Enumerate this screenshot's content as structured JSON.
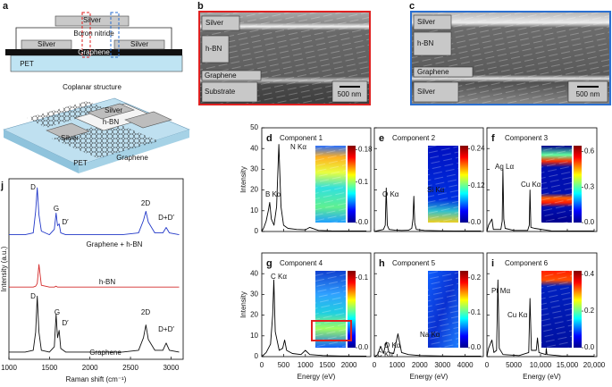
{
  "panel_a": {
    "label": "a",
    "cross_section": {
      "top_silver": "Silver",
      "cover": "Boron nitride",
      "left_silver": "Silver",
      "right_silver": "Silver",
      "graphene": "Graphene",
      "substrate": "PET"
    },
    "title": "Coplanar structure",
    "device": {
      "top_silver": "Silver",
      "hbn": "h-BN",
      "left_silver": "Silver",
      "substrate": "PET",
      "graphene": "Graphene"
    }
  },
  "panel_b": {
    "label": "b",
    "layers": [
      "Silver",
      "h-BN",
      "Graphene",
      "Substrate"
    ],
    "scale_bar": "500 nm"
  },
  "panel_c": {
    "label": "c",
    "layers": [
      "Silver",
      "h-BN",
      "Graphene",
      "Silver"
    ],
    "scale_bar": "500 nm"
  },
  "chart_data": [
    {
      "type": "line",
      "label": "d",
      "title": "Component 1",
      "annotations": [
        "B Kα",
        "N Kα"
      ],
      "x": [
        0,
        50,
        100,
        150,
        183,
        220,
        280,
        340,
        392,
        440,
        500,
        600,
        800,
        1000,
        1100,
        1300,
        1600,
        2000,
        2400
      ],
      "series": [
        {
          "color": "#000000",
          "values": [
            0,
            2,
            5,
            10,
            14,
            6,
            3,
            12,
            42,
            12,
            3,
            1.5,
            1,
            0.8,
            2,
            0.5,
            0.3,
            0.2,
            0.2
          ]
        }
      ],
      "xlim": [
        0,
        2500
      ],
      "ylim": [
        0,
        50
      ],
      "xticks": [
        0,
        500,
        1000,
        1500,
        2000
      ],
      "yticks": [
        0,
        10,
        20,
        30,
        40,
        50
      ],
      "ylabel": "Intensity",
      "colorbar": {
        "clim": [
          0,
          0.19
        ],
        "ticks": [
          {
            "value": 0,
            "label": "0.0"
          },
          0.1,
          0.18
        ]
      }
    },
    {
      "type": "line",
      "label": "e",
      "title": "Component 2",
      "annotations": [
        "O Kα",
        "Si Kα"
      ],
      "x": [
        0,
        200,
        400,
        480,
        525,
        570,
        650,
        900,
        1200,
        1500,
        1650,
        1700,
        1740,
        1780,
        1850,
        2200,
        3000,
        4000,
        4700
      ],
      "series": [
        {
          "color": "#000000",
          "values": [
            0,
            0.5,
            1,
            3,
            21,
            3,
            1,
            0.7,
            0.5,
            0.6,
            1.5,
            6,
            17,
            4,
            1,
            0.5,
            0.3,
            0.2,
            0.2
          ]
        }
      ],
      "xlim": [
        0,
        4800
      ],
      "ylim": [
        0,
        50
      ],
      "xticks": [
        0,
        1000,
        2000,
        3000,
        4000
      ],
      "yticks": [
        0,
        10,
        20,
        30,
        40,
        50
      ],
      "colorbar": {
        "clim": [
          0,
          0.25
        ],
        "ticks": [
          {
            "value": 0,
            "label": "0.0"
          },
          0.12,
          0.24
        ]
      }
    },
    {
      "type": "line",
      "label": "f",
      "title": "Component 3",
      "annotations": [
        "Ag Lα",
        "Cu Kα"
      ],
      "x": [
        0,
        300,
        930,
        1200,
        2600,
        2850,
        2980,
        3150,
        3400,
        5000,
        7600,
        7900,
        8040,
        8200,
        8900,
        12000,
        16000,
        20000
      ],
      "series": [
        {
          "color": "#000000",
          "values": [
            0,
            3,
            6,
            1,
            1,
            5,
            30,
            6,
            1.5,
            0.5,
            0.5,
            3,
            20,
            2,
            1.5,
            0.3,
            0.2,
            0.2
          ]
        }
      ],
      "xlim": [
        0,
        20500
      ],
      "ylim": [
        0,
        50
      ],
      "xticks": [
        0,
        5000,
        10000,
        15000,
        20000
      ],
      "yticks": [
        0,
        10,
        20,
        30,
        40,
        50
      ],
      "colorbar": {
        "clim": [
          0,
          0.65
        ],
        "ticks": [
          {
            "value": 0,
            "label": "0.0"
          },
          0.3,
          0.6
        ]
      }
    },
    {
      "type": "line",
      "label": "g",
      "title": "Component 4",
      "annotations": [
        "C Kα"
      ],
      "x": [
        0,
        100,
        200,
        250,
        277,
        310,
        400,
        480,
        525,
        570,
        700,
        900,
        1000,
        1100,
        1400,
        1800,
        2400
      ],
      "series": [
        {
          "color": "#000000",
          "values": [
            0,
            2,
            6,
            20,
            37,
            12,
            3,
            4,
            8,
            3,
            1.5,
            1,
            3,
            1,
            0.5,
            0.3,
            0.2
          ]
        }
      ],
      "xlim": [
        0,
        2500
      ],
      "ylim": [
        0,
        50
      ],
      "xticks": [
        0,
        500,
        1000,
        1500,
        2000
      ],
      "yticks": [
        0,
        10,
        20,
        30,
        40
      ],
      "xlabel": "Energy (eV)",
      "ylabel": "Intensity",
      "colorbar": {
        "clim": [
          0,
          0.11
        ],
        "ticks": [
          {
            "value": 0,
            "label": "0.0"
          },
          0.1
        ]
      }
    },
    {
      "type": "line",
      "label": "h",
      "title": "Component 5",
      "annotations": [
        "Na Kα",
        "O Kα",
        "C Kα"
      ],
      "x": [
        0,
        150,
        277,
        400,
        525,
        650,
        850,
        1040,
        1200,
        1500,
        2000,
        3000,
        4000,
        4700
      ],
      "series": [
        {
          "color": "#000000",
          "values": [
            0,
            1,
            5,
            1.5,
            7,
            2,
            1.5,
            11,
            2,
            1,
            0.5,
            0.3,
            0.2,
            0.2
          ]
        }
      ],
      "xlim": [
        0,
        4800
      ],
      "ylim": [
        0,
        50
      ],
      "xticks": [
        0,
        1000,
        2000,
        3000,
        4000
      ],
      "yticks": [
        0,
        10,
        20,
        30,
        40
      ],
      "xlabel": "Energy (eV)",
      "colorbar": {
        "clim": [
          0,
          0.22
        ],
        "ticks": [
          {
            "value": 0,
            "label": "0.0"
          },
          0.1,
          0.2
        ]
      }
    },
    {
      "type": "line",
      "label": "i",
      "title": "Component 6",
      "annotations": [
        "Pt Mα",
        "Cu Kα"
      ],
      "x": [
        0,
        300,
        930,
        1300,
        1800,
        2050,
        2300,
        3000,
        6000,
        7800,
        8040,
        8300,
        9200,
        9440,
        9700,
        11000,
        11070,
        11200,
        14000,
        20000
      ],
      "series": [
        {
          "color": "#000000",
          "values": [
            0,
            4,
            8,
            2,
            3,
            37,
            4,
            1,
            0.5,
            2,
            28,
            3,
            3,
            9,
            2,
            1,
            4,
            1,
            0.3,
            0.2
          ]
        }
      ],
      "xlim": [
        0,
        20500
      ],
      "ylim": [
        0,
        50
      ],
      "xticks": [
        0,
        5000,
        {
          "value": 10000,
          "label": "10,000"
        },
        {
          "value": 15000,
          "label": "15,000"
        },
        {
          "value": 20000,
          "label": "20,000"
        }
      ],
      "yticks": [
        0,
        10,
        20,
        30,
        40
      ],
      "xlabel": "Energy (eV)",
      "colorbar": {
        "clim": [
          0,
          0.42
        ],
        "ticks": [
          {
            "value": 0,
            "label": "0.0"
          },
          0.2,
          0.4
        ]
      }
    },
    {
      "type": "line",
      "label": "j",
      "annotations": [
        "D",
        "G",
        "D′",
        "2D",
        "D+D′",
        "D",
        "G",
        "D′",
        "2D",
        "D+D′"
      ],
      "x": [
        1000,
        1200,
        1300,
        1330,
        1350,
        1370,
        1400,
        1500,
        1560,
        1582,
        1600,
        1620,
        1640,
        1700,
        2000,
        2400,
        2600,
        2660,
        2690,
        2720,
        2800,
        2900,
        2940,
        2980,
        3100
      ],
      "series": [
        {
          "name": "Graphene + h-BN",
          "color": "#2238c8",
          "values": [
            6.9,
            6.9,
            7.0,
            8.2,
            9.5,
            8.0,
            7.1,
            6.9,
            7.2,
            8.1,
            7.4,
            7.5,
            7.0,
            6.9,
            6.9,
            6.9,
            7.0,
            7.7,
            8.2,
            7.6,
            7.0,
            7.0,
            7.3,
            7.0,
            6.9
          ]
        },
        {
          "name": "h-BN",
          "color": "#d42a2a",
          "values": [
            4.0,
            4.0,
            4.0,
            4.05,
            4.2,
            5.25,
            4.1,
            4.0,
            4.0,
            4.05,
            4.0,
            4.0,
            4.0,
            4.0,
            4.0,
            4.0,
            4.0,
            4.0,
            4.0,
            4.0,
            4.0,
            4.0,
            4.0,
            4.0,
            4.0
          ]
        },
        {
          "name": "Graphene",
          "color": "#111111",
          "values": [
            0.4,
            0.4,
            0.5,
            1.5,
            3.5,
            1.5,
            0.5,
            0.4,
            0.7,
            2.5,
            1.2,
            1.6,
            0.6,
            0.4,
            0.4,
            0.4,
            0.5,
            1.2,
            1.9,
            1.1,
            0.5,
            0.5,
            0.9,
            0.5,
            0.4
          ]
        }
      ],
      "xlim": [
        1000,
        3150
      ],
      "ylim": [
        0,
        10
      ],
      "xticks": [
        1000,
        1500,
        2000,
        2500,
        3000
      ],
      "xlabel": "Raman shift (cm⁻¹)",
      "ylabel": "Intensity (a.u.)"
    }
  ]
}
